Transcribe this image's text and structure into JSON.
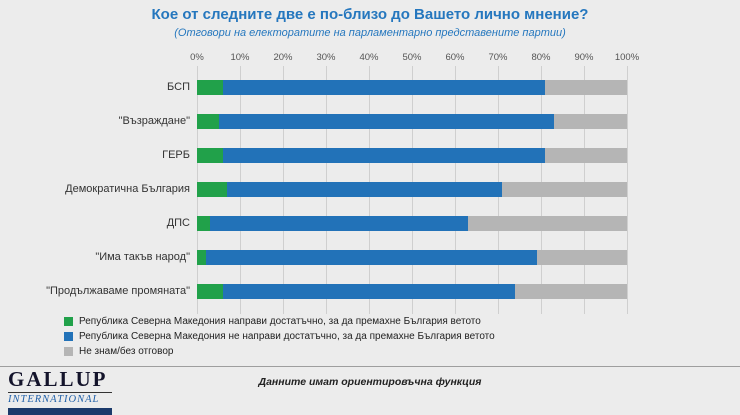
{
  "title": "Кое от следните две е по-близо до Вашето лично мнение?",
  "subtitle": "(Отговори на електоратите на парламентарно представените партии)",
  "colors": {
    "title_blue": "#2577be",
    "green": "#21a14a",
    "blue": "#2272b8",
    "gray": "#b5b5b5"
  },
  "chart_data": {
    "type": "bar",
    "stacked": true,
    "orientation": "horizontal",
    "xlim": [
      0,
      100
    ],
    "grid": true,
    "legend_position": "bottom-left",
    "x_ticks": [
      "0%",
      "10%",
      "20%",
      "30%",
      "40%",
      "50%",
      "60%",
      "70%",
      "80%",
      "90%",
      "100%"
    ],
    "categories": [
      "БСП",
      "\"Възраждане\"",
      "ГЕРБ",
      "Демократична България",
      "ДПС",
      "\"Има такъв народ\"",
      "\"Продължаваме промяната\""
    ],
    "series": [
      {
        "name": "Република Северна Македония направи достатъчно, за да премахне България ветото",
        "color": "#21a14a",
        "values": [
          6,
          5,
          6,
          7,
          3,
          2,
          6
        ]
      },
      {
        "name": "Република Северна Македония не направи достатъчно, за да премахне България ветото",
        "color": "#2272b8",
        "values": [
          75,
          78,
          75,
          64,
          60,
          77,
          68
        ]
      },
      {
        "name": "Не знам/без отговор",
        "color": "#b5b5b5",
        "values": [
          19,
          17,
          19,
          29,
          37,
          21,
          26
        ]
      }
    ]
  },
  "footer": {
    "note": "Данните имат ориентировъчна функция"
  },
  "logo": {
    "line1": "GALLUP",
    "line2": "INTERNATIONAL"
  }
}
